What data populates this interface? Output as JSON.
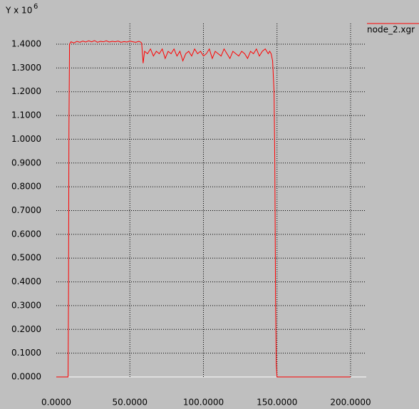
{
  "chart_data": {
    "type": "line",
    "y_label": "Y x 10",
    "y_label_exp": "6",
    "x": [
      0,
      8,
      8.3,
      8.6,
      9,
      10,
      12,
      14,
      16,
      18,
      20,
      22,
      24,
      26,
      28,
      30,
      32,
      34,
      36,
      38,
      40,
      42,
      44,
      46,
      48,
      50,
      52,
      54,
      56,
      57,
      58,
      59,
      60,
      62,
      64,
      66,
      68,
      70,
      72,
      74,
      76,
      78,
      80,
      82,
      84,
      86,
      88,
      90,
      92,
      94,
      96,
      98,
      100,
      102,
      104,
      106,
      108,
      110,
      112,
      114,
      116,
      118,
      120,
      122,
      124,
      126,
      128,
      130,
      132,
      134,
      136,
      138,
      140,
      142,
      144,
      145,
      146,
      147,
      148,
      148.5,
      149,
      149.5,
      150,
      200
    ],
    "series": [
      {
        "name": "node_2.xgr",
        "color": "#ff0000",
        "values": [
          0,
          0,
          0.35,
          1.05,
          1.4,
          1.41,
          1.405,
          1.412,
          1.408,
          1.413,
          1.409,
          1.414,
          1.41,
          1.415,
          1.408,
          1.412,
          1.41,
          1.414,
          1.409,
          1.412,
          1.41,
          1.413,
          1.408,
          1.411,
          1.409,
          1.413,
          1.41,
          1.408,
          1.412,
          1.41,
          1.405,
          1.32,
          1.37,
          1.36,
          1.38,
          1.35,
          1.37,
          1.36,
          1.38,
          1.34,
          1.37,
          1.36,
          1.38,
          1.35,
          1.37,
          1.33,
          1.36,
          1.37,
          1.35,
          1.38,
          1.36,
          1.37,
          1.35,
          1.36,
          1.38,
          1.34,
          1.37,
          1.36,
          1.35,
          1.38,
          1.36,
          1.34,
          1.37,
          1.36,
          1.35,
          1.37,
          1.36,
          1.34,
          1.37,
          1.36,
          1.38,
          1.35,
          1.37,
          1.38,
          1.36,
          1.37,
          1.36,
          1.33,
          1.2,
          0.9,
          0.33,
          0.05,
          0,
          0
        ]
      }
    ],
    "xlim": [
      0,
      200
    ],
    "ylim": [
      0,
      1.4
    ],
    "xticks": [
      {
        "value": 0,
        "label": "0.0000"
      },
      {
        "value": 50,
        "label": "50.0000"
      },
      {
        "value": 100,
        "label": "100.0000"
      },
      {
        "value": 150,
        "label": "150.0000"
      },
      {
        "value": 200,
        "label": "200.0000"
      }
    ],
    "yticks": [
      {
        "value": 0,
        "label": "0.0000"
      },
      {
        "value": 0.1,
        "label": "0.1000"
      },
      {
        "value": 0.2,
        "label": "0.2000"
      },
      {
        "value": 0.3,
        "label": "0.3000"
      },
      {
        "value": 0.4,
        "label": "0.4000"
      },
      {
        "value": 0.5,
        "label": "0.5000"
      },
      {
        "value": 0.6,
        "label": "0.6000"
      },
      {
        "value": 0.7,
        "label": "0.7000"
      },
      {
        "value": 0.8,
        "label": "0.8000"
      },
      {
        "value": 0.9,
        "label": "0.9000"
      },
      {
        "value": 1.0,
        "label": "1.0000"
      },
      {
        "value": 1.1,
        "label": "1.1000"
      },
      {
        "value": 1.2,
        "label": "1.2000"
      },
      {
        "value": 1.3,
        "label": "1.3000"
      },
      {
        "value": 1.4,
        "label": "1.4000"
      }
    ],
    "grid": true
  }
}
